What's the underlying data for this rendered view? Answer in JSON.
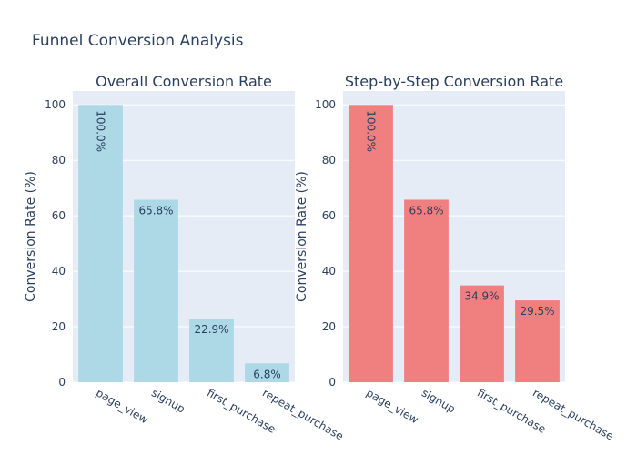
{
  "figure": {
    "title": "Funnel Conversion Analysis"
  },
  "chart_data": [
    {
      "type": "bar",
      "title": "Overall Conversion Rate",
      "categories": [
        "page_view",
        "signup",
        "first_purchase",
        "repeat_purchase"
      ],
      "values": [
        100.0,
        65.8,
        22.9,
        6.8
      ],
      "labels": [
        "100.0%",
        "65.8%",
        "22.9%",
        "6.8%"
      ],
      "xlabel": "",
      "ylabel": "Conversion Rate (%)",
      "ylim": [
        0,
        105
      ],
      "yticks": [
        0,
        20,
        40,
        60,
        80,
        100
      ],
      "color": "#add8e6",
      "grid": true
    },
    {
      "type": "bar",
      "title": "Step-by-Step Conversion Rate",
      "categories": [
        "page_view",
        "signup",
        "first_purchase",
        "repeat_purchase"
      ],
      "values": [
        100.0,
        65.8,
        34.9,
        29.5
      ],
      "labels": [
        "100.0%",
        "65.8%",
        "34.9%",
        "29.5%"
      ],
      "xlabel": "",
      "ylabel": "Conversion Rate (%)",
      "ylim": [
        0,
        105
      ],
      "yticks": [
        0,
        20,
        40,
        60,
        80,
        100
      ],
      "color": "#f08080",
      "grid": true
    }
  ]
}
